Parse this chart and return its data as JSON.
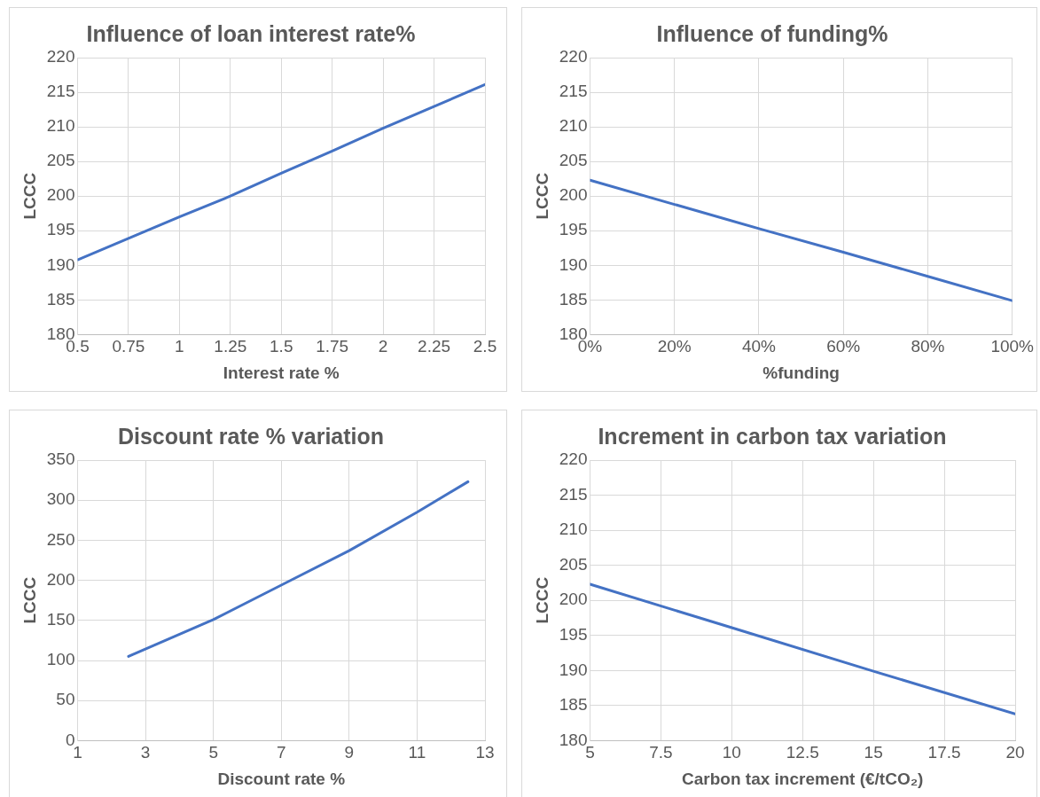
{
  "chart_data": [
    {
      "type": "line",
      "title": "Influence of loan interest rate%",
      "xlabel": "Interest rate %",
      "ylabel": "LCCC",
      "marker": "none",
      "grid": true,
      "xlim": [
        0.5,
        2.5
      ],
      "xticks": [
        0.5,
        0.75,
        1,
        1.25,
        1.5,
        1.75,
        2,
        2.25,
        2.5
      ],
      "ylim": [
        180,
        220
      ],
      "yticks": [
        180,
        185,
        190,
        195,
        200,
        205,
        210,
        215,
        220
      ],
      "x": [
        0.5,
        1,
        1.25,
        1.5,
        1.75,
        2,
        2.5
      ],
      "series": [
        {
          "color": "#4472c4",
          "values": [
            190.8,
            197.0,
            200.0,
            203.3,
            206.5,
            209.8,
            216.1
          ]
        }
      ]
    },
    {
      "type": "line",
      "title": "Influence of funding%",
      "xlabel": "%funding",
      "ylabel": "LCCC",
      "marker": "none",
      "grid": true,
      "xlim": [
        0,
        100
      ],
      "xticks": [
        {
          "value": 0,
          "label": "0%"
        },
        {
          "value": 20,
          "label": "20%"
        },
        {
          "value": 40,
          "label": "40%"
        },
        {
          "value": 60,
          "label": "60%"
        },
        {
          "value": 80,
          "label": "80%"
        },
        {
          "value": 100,
          "label": "100%"
        }
      ],
      "ylim": [
        180,
        220
      ],
      "yticks": [
        180,
        185,
        190,
        195,
        200,
        205,
        210,
        215,
        220
      ],
      "x": [
        0,
        20,
        40,
        60,
        80,
        100
      ],
      "series": [
        {
          "color": "#4472c4",
          "values": [
            202.3,
            198.8,
            195.3,
            191.9,
            188.4,
            184.9
          ]
        }
      ]
    },
    {
      "type": "line",
      "title": "Discount rate % variation",
      "xlabel": "Discount rate %",
      "ylabel": "LCCC",
      "marker": "none",
      "grid": true,
      "xlim": [
        1,
        13
      ],
      "xticks": [
        1,
        3,
        5,
        7,
        9,
        11,
        13
      ],
      "ylim": [
        0,
        350
      ],
      "yticks": [
        0,
        50,
        100,
        150,
        200,
        250,
        300,
        350
      ],
      "x": [
        2.5,
        5,
        7,
        9,
        11,
        12.5
      ],
      "series": [
        {
          "color": "#4472c4",
          "values": [
            105,
            151,
            194,
            237,
            285,
            323
          ]
        }
      ]
    },
    {
      "type": "line",
      "title": "Increment in carbon tax variation",
      "xlabel": "Carbon tax increment (€/tCO₂)",
      "ylabel": "LCCC",
      "marker": "none",
      "grid": true,
      "xlim": [
        5,
        20
      ],
      "xticks": [
        5,
        7.5,
        10,
        12.5,
        15,
        17.5,
        20
      ],
      "ylim": [
        180,
        220
      ],
      "yticks": [
        180,
        185,
        190,
        195,
        200,
        205,
        210,
        215,
        220
      ],
      "x": [
        5,
        10,
        15,
        20
      ],
      "series": [
        {
          "color": "#4472c4",
          "values": [
            202.3,
            196.1,
            189.9,
            183.8
          ]
        }
      ]
    }
  ]
}
